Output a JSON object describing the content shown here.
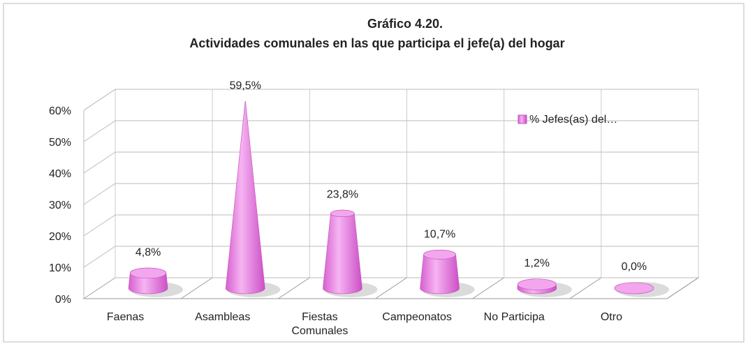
{
  "chart_data": {
    "type": "bar3d-cone",
    "title": "Gráfico 4.20.",
    "subtitle": "Actividades comunales en las que participa el jefe(a) del hogar",
    "categories": [
      "Faenas",
      "Asambleas",
      "Fiestas Comunales",
      "Campeonatos",
      "No Participa",
      "Otro"
    ],
    "series": [
      {
        "name": "% Jefes(as) del…",
        "color": "#e57fe0",
        "values": [
          4.8,
          59.5,
          23.8,
          10.7,
          1.2,
          0.0
        ],
        "value_labels": [
          "4,8%",
          "59,5%",
          "23,8%",
          "10,7%",
          "1,2%",
          "0,0%"
        ]
      }
    ],
    "ylim": [
      0,
      60
    ],
    "yticks": [
      {
        "value": 0,
        "label": "0%"
      },
      {
        "value": 10,
        "label": "10%"
      },
      {
        "value": 20,
        "label": "20%"
      },
      {
        "value": 30,
        "label": "30%"
      },
      {
        "value": 40,
        "label": "40%"
      },
      {
        "value": 50,
        "label": "50%"
      },
      {
        "value": 60,
        "label": "60%"
      }
    ],
    "grid": true,
    "legend": "upper right"
  }
}
